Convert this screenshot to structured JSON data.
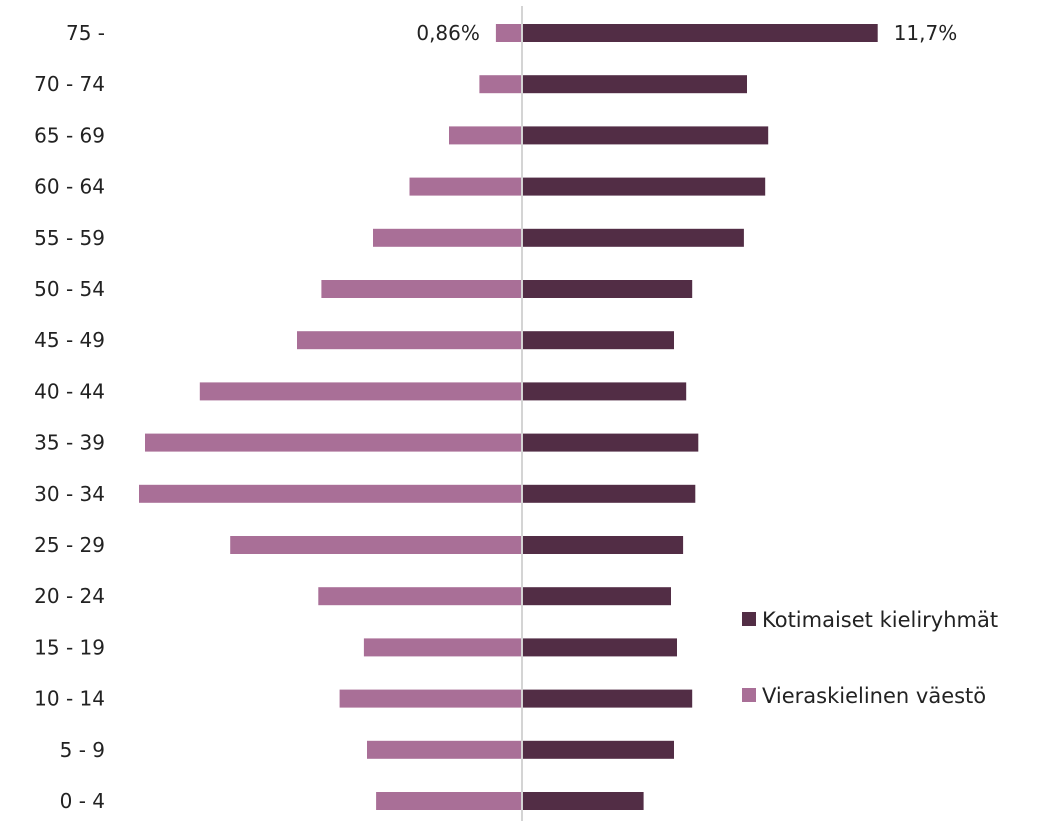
{
  "chart_data": {
    "type": "bar",
    "orientation": "horizontal",
    "layout": "population-pyramid",
    "categories": [
      "75 -",
      "70 - 74",
      "65 - 69",
      "60 - 64",
      "55 - 59",
      "50 - 54",
      "45 - 49",
      "40 - 44",
      "35 - 39",
      "30 - 34",
      "25 - 29",
      "20 - 24",
      "15 - 19",
      "10 - 14",
      "5 - 9",
      "0 - 4"
    ],
    "series": [
      {
        "name": "Kotimaiset kieliryhmät",
        "color": "#522d45",
        "side": "right",
        "values": [
          11.7,
          7.4,
          8.1,
          8.0,
          7.3,
          5.6,
          5.0,
          5.4,
          5.8,
          5.7,
          5.3,
          4.9,
          5.1,
          5.6,
          5.0,
          4.0
        ]
      },
      {
        "name": "Vieraskielinen väestö",
        "color": "#a96f97",
        "side": "left",
        "values": [
          0.86,
          1.4,
          2.4,
          3.7,
          4.9,
          6.6,
          7.4,
          10.6,
          12.4,
          12.6,
          9.6,
          6.7,
          5.2,
          6.0,
          5.1,
          4.8
        ]
      }
    ],
    "data_labels": [
      {
        "series": 1,
        "index": 0,
        "text": "0,86%"
      },
      {
        "series": 0,
        "index": 0,
        "text": "11,7%"
      }
    ],
    "legend_position": "right",
    "center_axis_color": "#d4d4d4",
    "grid": false
  }
}
